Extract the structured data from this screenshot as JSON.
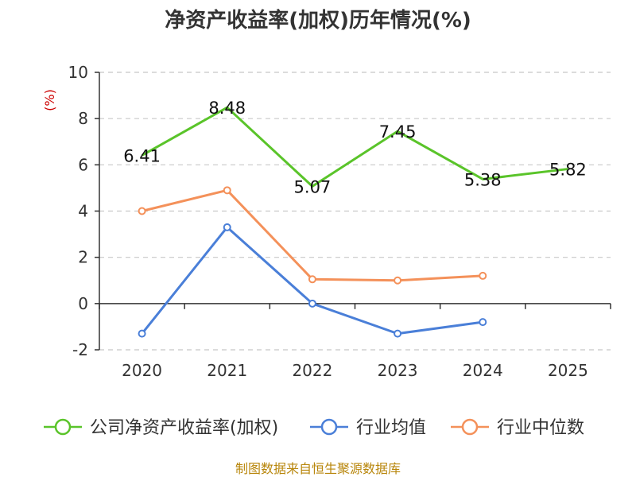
{
  "chart_data": {
    "type": "line",
    "title": "净资产收益率(加权)历年情况(%)",
    "y_unit": "(%)",
    "categories": [
      "2020",
      "2021",
      "2022",
      "2023",
      "2024",
      "2025"
    ],
    "ylim": [
      -2,
      10
    ],
    "y_ticks": [
      -2,
      0,
      2,
      4,
      6,
      8,
      10
    ],
    "grid": true,
    "legend_position": "bottom",
    "series": [
      {
        "name": "公司净资产收益率(加权)",
        "color": "#5ac42a",
        "values": [
          6.41,
          8.48,
          5.07,
          7.45,
          5.38,
          5.82
        ],
        "show_markers": false,
        "labels": [
          "6.41",
          "8.48",
          "5.07",
          "7.45",
          "5.38",
          "5.82"
        ]
      },
      {
        "name": "行业均值",
        "color": "#4a7fd8",
        "values": [
          -1.3,
          3.3,
          0.0,
          -1.3,
          -0.8,
          null
        ],
        "show_markers": true
      },
      {
        "name": "行业中位数",
        "color": "#f4915a",
        "values": [
          4.0,
          4.9,
          1.05,
          1.0,
          1.2,
          null
        ],
        "show_markers": true
      }
    ]
  },
  "source": "制图数据来自恒生聚源数据库"
}
